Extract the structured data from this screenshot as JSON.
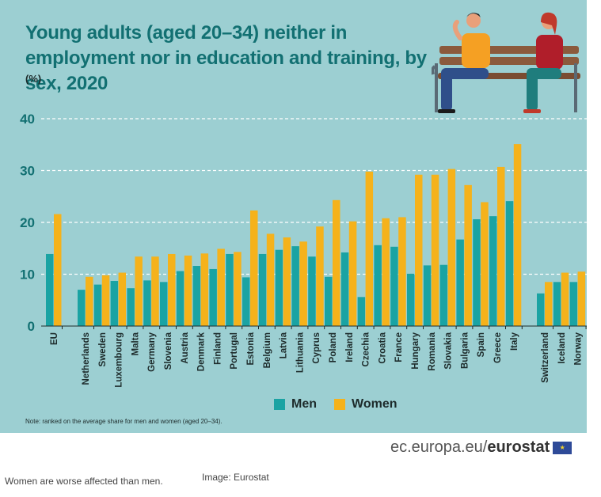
{
  "chart_data": {
    "type": "bar",
    "title": "Young adults (aged 20–34) neither in employment nor in education and training, by sex, 2020",
    "unit": "(%)",
    "categories": [
      "EU",
      "Netherlands",
      "Sweden",
      "Luxembourg",
      "Malta",
      "Germany",
      "Slovenia",
      "Austria",
      "Denmark",
      "Finland",
      "Portugal",
      "Estonia",
      "Belgium",
      "Latvia",
      "Lithuania",
      "Cyprus",
      "Poland",
      "Ireland",
      "Czechia",
      "Croatia",
      "France",
      "Hungary",
      "Romania",
      "Slovakia",
      "Bulgaria",
      "Spain",
      "Greece",
      "Italy",
      "Switzerland",
      "Iceland",
      "Norway"
    ],
    "groups": [
      [
        "EU"
      ],
      [
        "Netherlands",
        "Sweden",
        "Luxembourg",
        "Malta",
        "Germany",
        "Slovenia",
        "Austria",
        "Denmark",
        "Finland",
        "Portugal",
        "Estonia",
        "Belgium",
        "Latvia",
        "Lithuania",
        "Cyprus",
        "Poland",
        "Ireland",
        "Czechia",
        "Croatia",
        "France",
        "Hungary",
        "Romania",
        "Slovakia",
        "Bulgaria",
        "Spain",
        "Greece",
        "Italy"
      ],
      [
        "Switzerland",
        "Iceland",
        "Norway"
      ]
    ],
    "series": [
      {
        "name": "Men",
        "color": "#1aa3a3",
        "values": [
          13.9,
          7.0,
          8.0,
          8.7,
          7.3,
          8.8,
          8.5,
          10.6,
          11.6,
          11.0,
          13.9,
          9.4,
          13.9,
          14.7,
          15.4,
          13.4,
          9.5,
          14.2,
          5.6,
          15.6,
          15.3,
          10.1,
          11.7,
          11.8,
          16.7,
          20.6,
          21.2,
          24.1,
          6.3,
          8.5,
          8.5
        ]
      },
      {
        "name": "Women",
        "color": "#f5b21b",
        "values": [
          21.6,
          9.5,
          9.8,
          10.3,
          13.4,
          13.4,
          13.9,
          13.6,
          14.0,
          14.9,
          14.3,
          22.3,
          17.8,
          17.1,
          16.3,
          19.2,
          24.3,
          20.2,
          29.8,
          20.8,
          21.0,
          29.2,
          29.2,
          30.3,
          27.2,
          23.9,
          30.7,
          35.1,
          8.5,
          10.3,
          10.5
        ]
      }
    ],
    "ylim": [
      0,
      40
    ],
    "yticks": [
      0,
      10,
      20,
      30,
      40
    ],
    "grid": true,
    "legend": "bottom-center",
    "note": "Note: ranked on the average share for men and women (aged 20–34)."
  },
  "footer": {
    "domain": "ec.europa.eu/",
    "brand": "eurostat"
  },
  "caption": "Women are worse affected than men.",
  "credit": "Image: Eurostat"
}
